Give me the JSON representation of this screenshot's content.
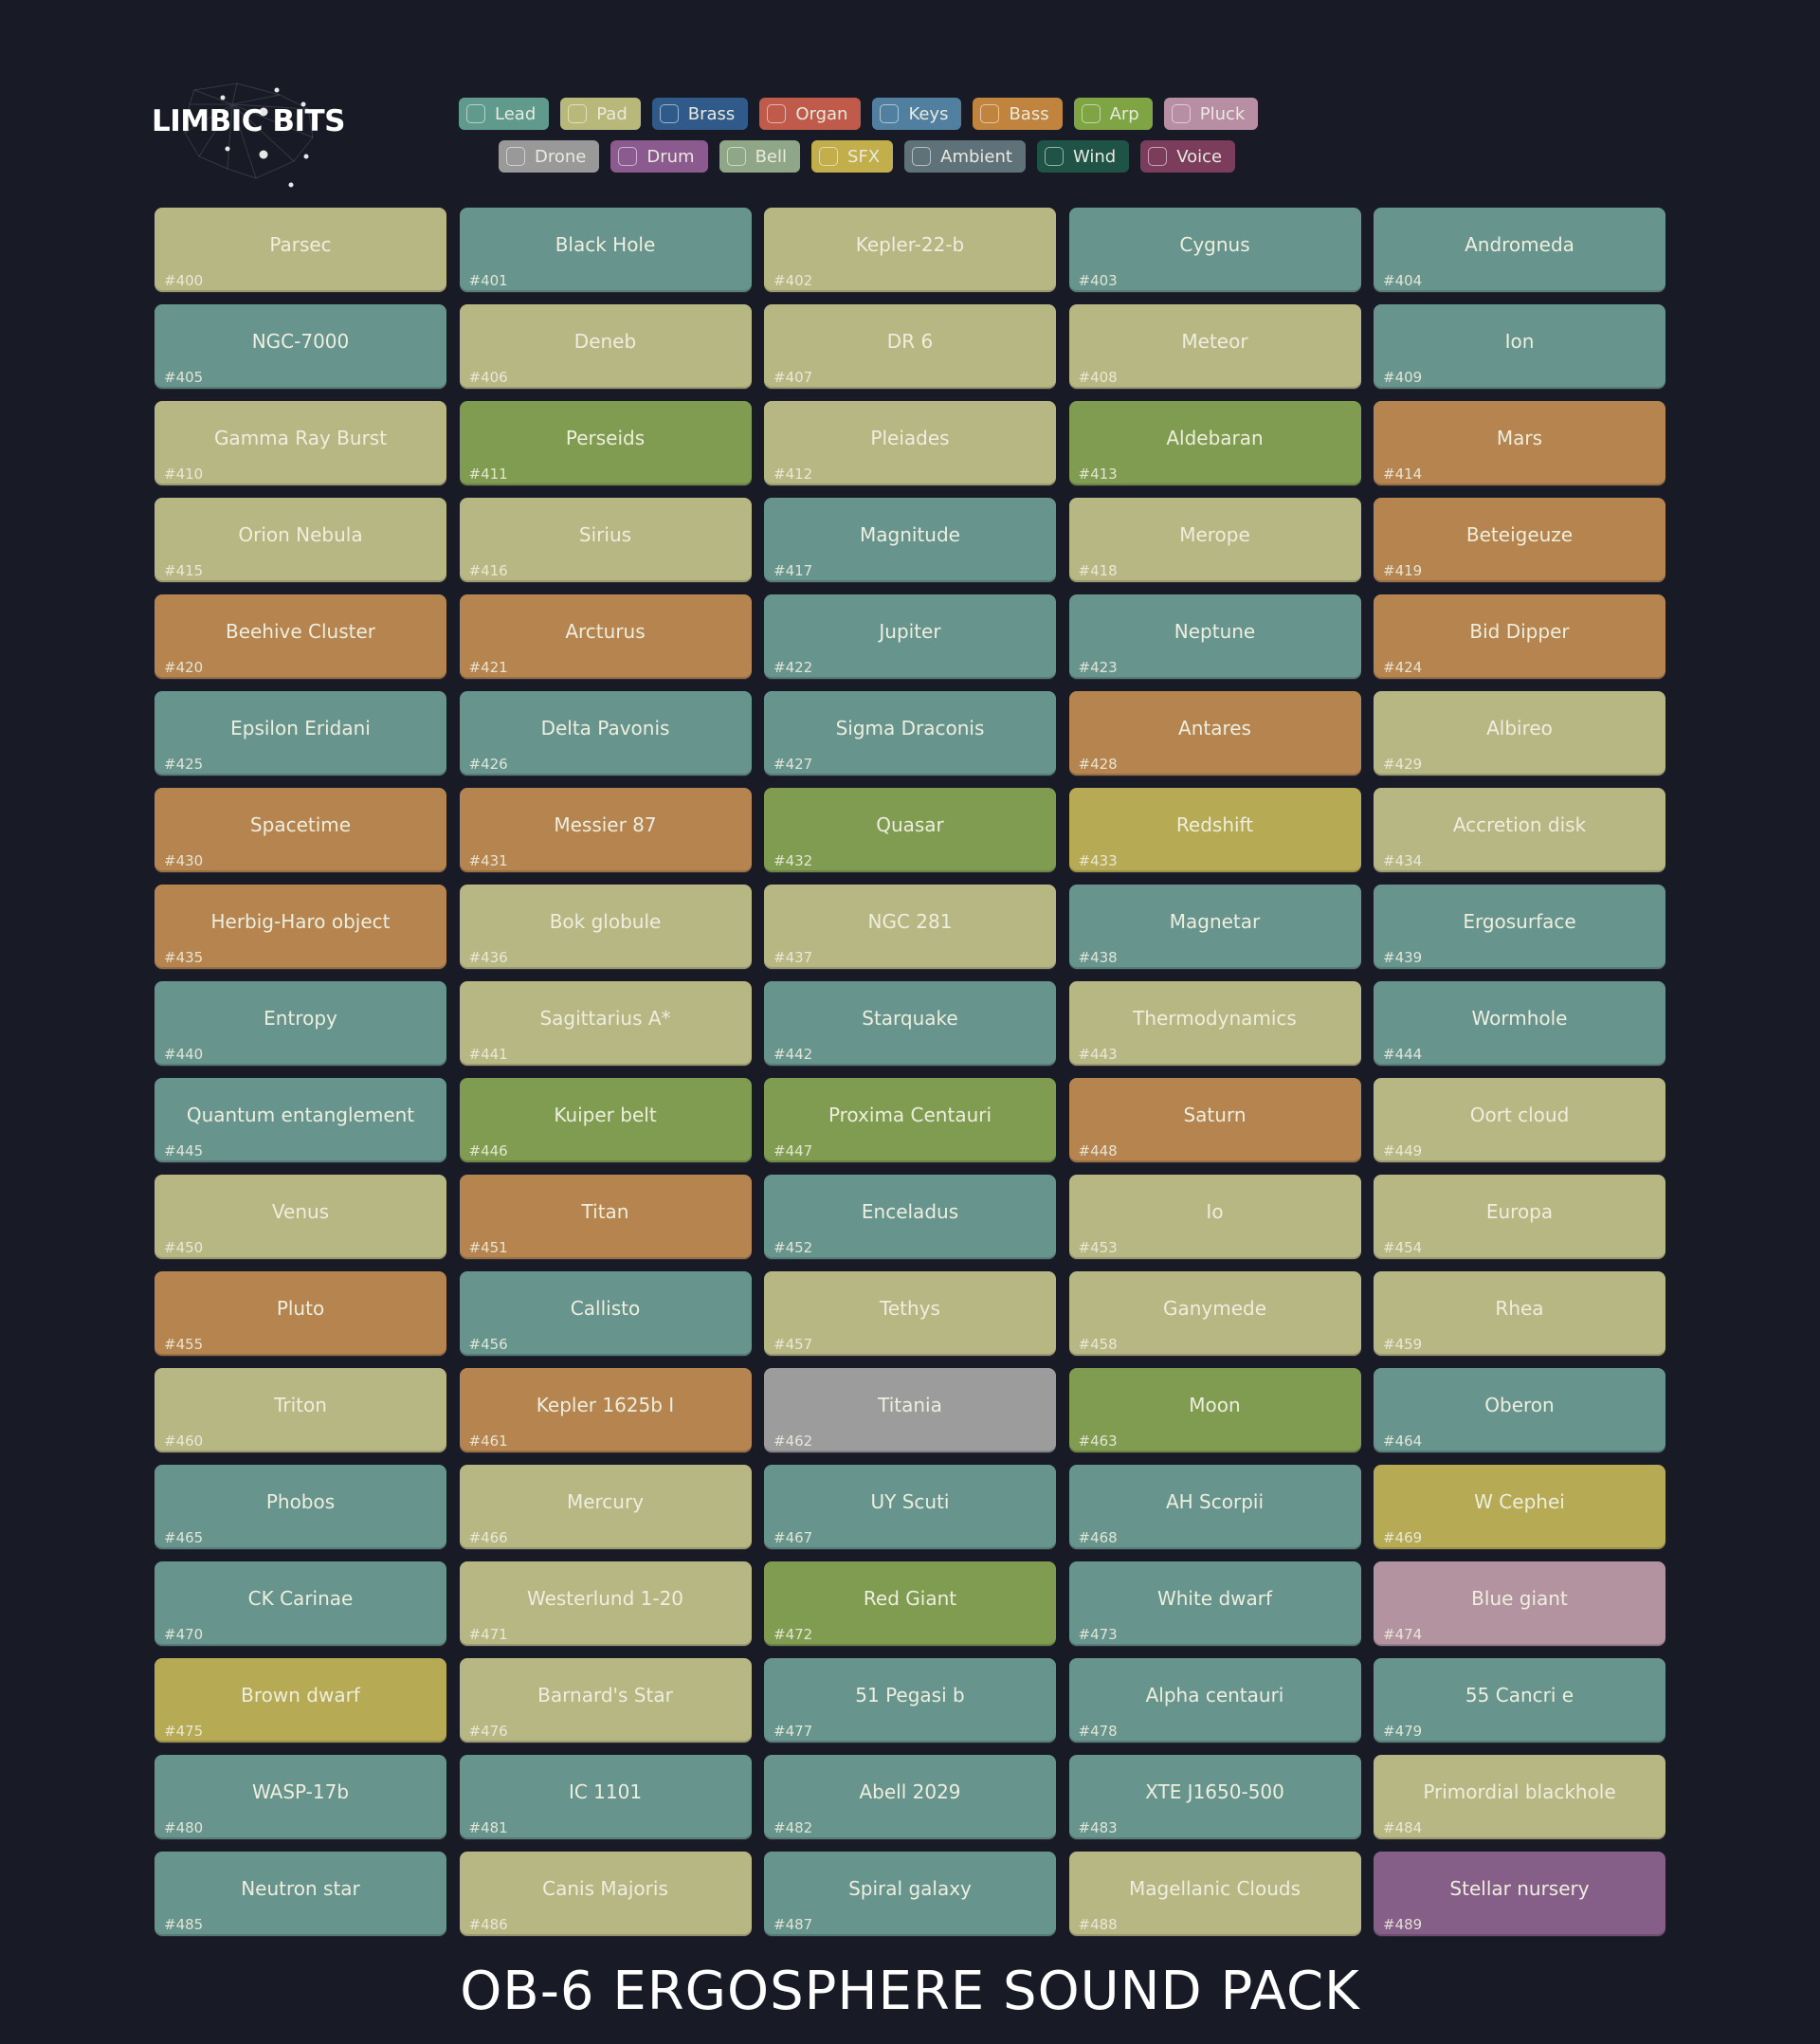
{
  "brand": {
    "logo_text": "LIMBIC BITS"
  },
  "filters": {
    "row1": [
      {
        "label": "Lead",
        "color": "#5f9a8c"
      },
      {
        "label": "Pad",
        "color": "#b8b87a"
      },
      {
        "label": "Brass",
        "color": "#2f5a8a"
      },
      {
        "label": "Organ",
        "color": "#c05a4a"
      },
      {
        "label": "Keys",
        "color": "#507f9f"
      },
      {
        "label": "Bass",
        "color": "#c0843e"
      },
      {
        "label": "Arp",
        "color": "#7ea443"
      },
      {
        "label": "Pluck",
        "color": "#b88ea4"
      }
    ],
    "row2": [
      {
        "label": "Drone",
        "color": "#999999"
      },
      {
        "label": "Drum",
        "color": "#8b5a8e"
      },
      {
        "label": "Bell",
        "color": "#8fa786"
      },
      {
        "label": "SFX",
        "color": "#c2ae4a"
      },
      {
        "label": "Ambient",
        "color": "#5f727a"
      },
      {
        "label": "Wind",
        "color": "#1f5346"
      },
      {
        "label": "Voice",
        "color": "#7c3c5c"
      }
    ]
  },
  "colors": {
    "Lead": "#67958d",
    "Pad": "#b7b783",
    "Bass": "#b5844f",
    "Arp": "#7f9c50",
    "SFX": "#b7aa55",
    "Drone": "#9c9c9c",
    "Pluck": "#b493a1",
    "Drum": "#865f88"
  },
  "patches": [
    {
      "num": "#400",
      "name": "Parsec",
      "cat": "Pad"
    },
    {
      "num": "#401",
      "name": "Black Hole",
      "cat": "Lead"
    },
    {
      "num": "#402",
      "name": "Kepler-22-b",
      "cat": "Pad"
    },
    {
      "num": "#403",
      "name": "Cygnus",
      "cat": "Lead"
    },
    {
      "num": "#404",
      "name": "Andromeda",
      "cat": "Lead"
    },
    {
      "num": "#405",
      "name": "NGC-7000",
      "cat": "Lead"
    },
    {
      "num": "#406",
      "name": "Deneb",
      "cat": "Pad"
    },
    {
      "num": "#407",
      "name": "DR 6",
      "cat": "Pad"
    },
    {
      "num": "#408",
      "name": "Meteor",
      "cat": "Pad"
    },
    {
      "num": "#409",
      "name": "Ion",
      "cat": "Lead"
    },
    {
      "num": "#410",
      "name": "Gamma Ray Burst",
      "cat": "Pad"
    },
    {
      "num": "#411",
      "name": "Perseids",
      "cat": "Arp"
    },
    {
      "num": "#412",
      "name": "Pleiades",
      "cat": "Pad"
    },
    {
      "num": "#413",
      "name": "Aldebaran",
      "cat": "Arp"
    },
    {
      "num": "#414",
      "name": "Mars",
      "cat": "Bass"
    },
    {
      "num": "#415",
      "name": "Orion Nebula",
      "cat": "Pad"
    },
    {
      "num": "#416",
      "name": "Sirius",
      "cat": "Pad"
    },
    {
      "num": "#417",
      "name": "Magnitude",
      "cat": "Lead"
    },
    {
      "num": "#418",
      "name": "Merope",
      "cat": "Pad"
    },
    {
      "num": "#419",
      "name": "Beteigeuze",
      "cat": "Bass"
    },
    {
      "num": "#420",
      "name": "Beehive Cluster",
      "cat": "Bass"
    },
    {
      "num": "#421",
      "name": "Arcturus",
      "cat": "Bass"
    },
    {
      "num": "#422",
      "name": "Jupiter",
      "cat": "Lead"
    },
    {
      "num": "#423",
      "name": "Neptune",
      "cat": "Lead"
    },
    {
      "num": "#424",
      "name": "Bid Dipper",
      "cat": "Bass"
    },
    {
      "num": "#425",
      "name": "Epsilon Eridani",
      "cat": "Lead"
    },
    {
      "num": "#426",
      "name": "Delta Pavonis",
      "cat": "Lead"
    },
    {
      "num": "#427",
      "name": "Sigma Draconis",
      "cat": "Lead"
    },
    {
      "num": "#428",
      "name": "Antares",
      "cat": "Bass"
    },
    {
      "num": "#429",
      "name": "Albireo",
      "cat": "Pad"
    },
    {
      "num": "#430",
      "name": "Spacetime",
      "cat": "Bass"
    },
    {
      "num": "#431",
      "name": "Messier 87",
      "cat": "Bass"
    },
    {
      "num": "#432",
      "name": "Quasar",
      "cat": "Arp"
    },
    {
      "num": "#433",
      "name": "Redshift",
      "cat": "SFX"
    },
    {
      "num": "#434",
      "name": "Accretion disk",
      "cat": "Pad"
    },
    {
      "num": "#435",
      "name": "Herbig-Haro object",
      "cat": "Bass"
    },
    {
      "num": "#436",
      "name": "Bok globule",
      "cat": "Pad"
    },
    {
      "num": "#437",
      "name": "NGC 281",
      "cat": "Pad"
    },
    {
      "num": "#438",
      "name": "Magnetar",
      "cat": "Lead"
    },
    {
      "num": "#439",
      "name": "Ergosurface",
      "cat": "Lead"
    },
    {
      "num": "#440",
      "name": "Entropy",
      "cat": "Lead"
    },
    {
      "num": "#441",
      "name": "Sagittarius A*",
      "cat": "Pad"
    },
    {
      "num": "#442",
      "name": "Starquake",
      "cat": "Lead"
    },
    {
      "num": "#443",
      "name": "Thermodynamics",
      "cat": "Pad"
    },
    {
      "num": "#444",
      "name": "Wormhole",
      "cat": "Lead"
    },
    {
      "num": "#445",
      "name": "Quantum entanglement",
      "cat": "Lead"
    },
    {
      "num": "#446",
      "name": "Kuiper belt",
      "cat": "Arp"
    },
    {
      "num": "#447",
      "name": "Proxima Centauri",
      "cat": "Arp"
    },
    {
      "num": "#448",
      "name": "Saturn",
      "cat": "Bass"
    },
    {
      "num": "#449",
      "name": "Oort cloud",
      "cat": "Pad"
    },
    {
      "num": "#450",
      "name": "Venus",
      "cat": "Pad"
    },
    {
      "num": "#451",
      "name": "Titan",
      "cat": "Bass"
    },
    {
      "num": "#452",
      "name": "Enceladus",
      "cat": "Lead"
    },
    {
      "num": "#453",
      "name": "Io",
      "cat": "Pad"
    },
    {
      "num": "#454",
      "name": "Europa",
      "cat": "Pad"
    },
    {
      "num": "#455",
      "name": "Pluto",
      "cat": "Bass"
    },
    {
      "num": "#456",
      "name": "Callisto",
      "cat": "Lead"
    },
    {
      "num": "#457",
      "name": "Tethys",
      "cat": "Pad"
    },
    {
      "num": "#458",
      "name": "Ganymede",
      "cat": "Pad"
    },
    {
      "num": "#459",
      "name": "Rhea",
      "cat": "Pad"
    },
    {
      "num": "#460",
      "name": "Triton",
      "cat": "Pad"
    },
    {
      "num": "#461",
      "name": "Kepler 1625b I",
      "cat": "Bass"
    },
    {
      "num": "#462",
      "name": "Titania",
      "cat": "Drone"
    },
    {
      "num": "#463",
      "name": "Moon",
      "cat": "Arp"
    },
    {
      "num": "#464",
      "name": "Oberon",
      "cat": "Lead"
    },
    {
      "num": "#465",
      "name": "Phobos",
      "cat": "Lead"
    },
    {
      "num": "#466",
      "name": "Mercury",
      "cat": "Pad"
    },
    {
      "num": "#467",
      "name": "UY Scuti",
      "cat": "Lead"
    },
    {
      "num": "#468",
      "name": "AH Scorpii",
      "cat": "Lead"
    },
    {
      "num": "#469",
      "name": "W Cephei",
      "cat": "SFX"
    },
    {
      "num": "#470",
      "name": "CK Carinae",
      "cat": "Lead"
    },
    {
      "num": "#471",
      "name": "Westerlund 1-20",
      "cat": "Pad"
    },
    {
      "num": "#472",
      "name": "Red Giant",
      "cat": "Arp"
    },
    {
      "num": "#473",
      "name": "White dwarf",
      "cat": "Lead"
    },
    {
      "num": "#474",
      "name": "Blue giant",
      "cat": "Pluck"
    },
    {
      "num": "#475",
      "name": "Brown dwarf",
      "cat": "SFX"
    },
    {
      "num": "#476",
      "name": "Barnard's Star",
      "cat": "Pad"
    },
    {
      "num": "#477",
      "name": "51 Pegasi b",
      "cat": "Lead"
    },
    {
      "num": "#478",
      "name": "Alpha centauri",
      "cat": "Lead"
    },
    {
      "num": "#479",
      "name": "55 Cancri e",
      "cat": "Lead"
    },
    {
      "num": "#480",
      "name": "WASP-17b",
      "cat": "Lead"
    },
    {
      "num": "#481",
      "name": "IC 1101",
      "cat": "Lead"
    },
    {
      "num": "#482",
      "name": "Abell 2029",
      "cat": "Lead"
    },
    {
      "num": "#483",
      "name": "XTE J1650-500",
      "cat": "Lead"
    },
    {
      "num": "#484",
      "name": "Primordial blackhole",
      "cat": "Pad"
    },
    {
      "num": "#485",
      "name": "Neutron star",
      "cat": "Lead"
    },
    {
      "num": "#486",
      "name": "Canis Majoris",
      "cat": "Pad"
    },
    {
      "num": "#487",
      "name": "Spiral galaxy",
      "cat": "Lead"
    },
    {
      "num": "#488",
      "name": "Magellanic Clouds",
      "cat": "Pad"
    },
    {
      "num": "#489",
      "name": "Stellar nursery",
      "cat": "Drum"
    }
  ],
  "footer": {
    "title": "OB-6 ERGOSPHERE SOUND PACK"
  }
}
